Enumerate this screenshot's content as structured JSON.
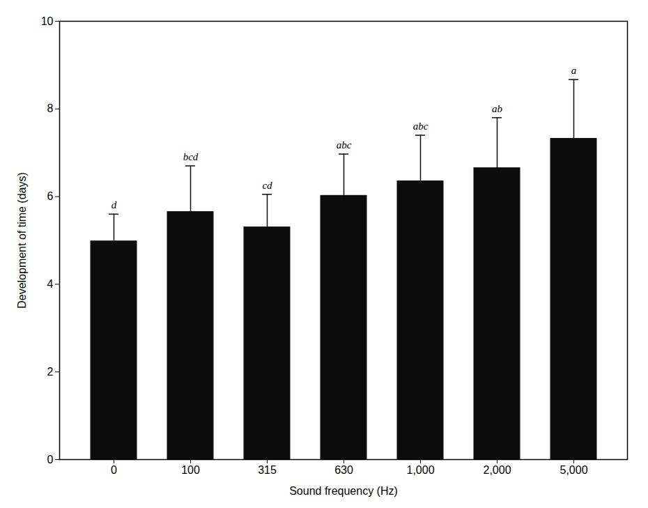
{
  "chart_data": {
    "type": "bar",
    "categories": [
      "0",
      "100",
      "315",
      "630",
      "1,000",
      "2,000",
      "5,000"
    ],
    "values": [
      4.98,
      5.65,
      5.3,
      6.02,
      6.35,
      6.65,
      7.32
    ],
    "errors": [
      0.62,
      1.05,
      0.75,
      0.95,
      1.05,
      1.15,
      1.35
    ],
    "annotations": [
      "d",
      "bcd",
      "cd",
      "abc",
      "abc",
      "ab",
      "a"
    ],
    "color": "#0d0d0d",
    "xlabel": "Sound frequency (Hz)",
    "ylabel": "Development of time (days)",
    "ylim": [
      0,
      10
    ],
    "yticks": [
      0,
      2,
      4,
      6,
      8,
      10
    ],
    "grid": false
  }
}
